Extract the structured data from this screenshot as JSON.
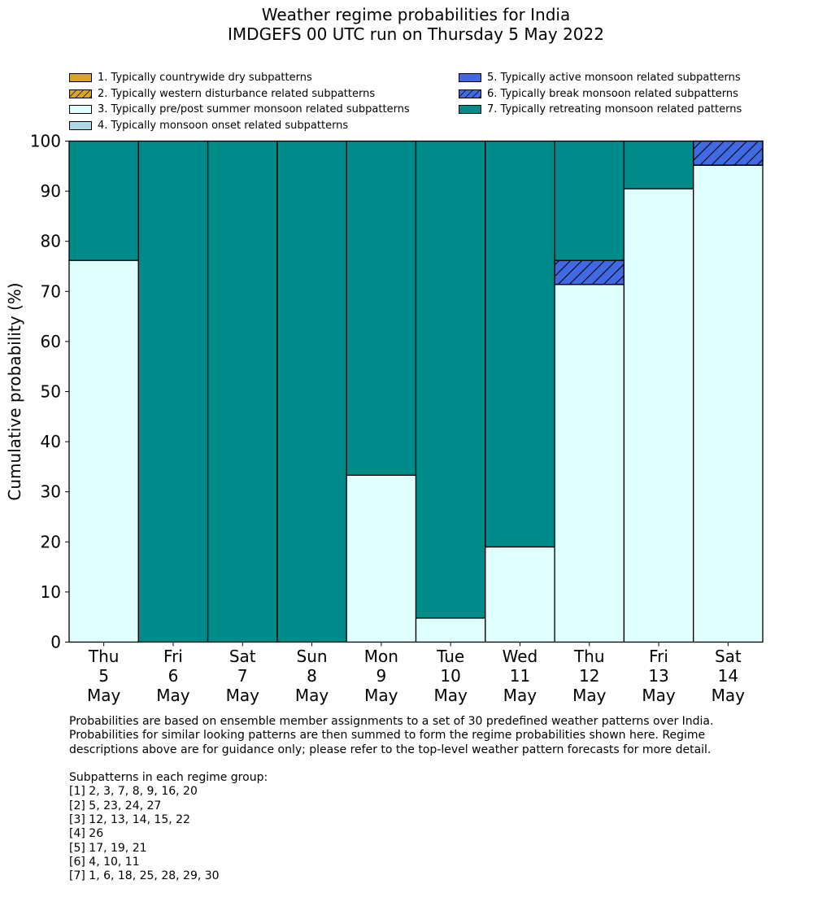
{
  "title_lines": [
    "Weather regime probabilities for India",
    "IMDGEFS 00 UTC run on Thursday 5 May 2022"
  ],
  "legend": [
    {
      "label": "1. Typically countrywide dry subpatterns",
      "color": "#DAA520",
      "hatch": false
    },
    {
      "label": "2. Typically western disturbance related subpatterns",
      "color": "#DAA520",
      "hatch": true
    },
    {
      "label": "3. Typically pre/post summer monsoon related subpatterns",
      "color": "#E0FFFF",
      "hatch": false
    },
    {
      "label": "4. Typically monsoon onset related subpatterns",
      "color": "#ADD8E6",
      "hatch": false
    },
    {
      "label": "5. Typically active monsoon related subpatterns",
      "color": "#4169E1",
      "hatch": false
    },
    {
      "label": "6. Typically break monsoon related subpatterns",
      "color": "#4169E1",
      "hatch": true
    },
    {
      "label": "7. Typically retreating monsoon related patterns",
      "color": "#008B8B",
      "hatch": false
    }
  ],
  "chart_data": {
    "type": "bar",
    "stacked": true,
    "ylabel": "Cumulative probability (%)",
    "ylim": [
      0,
      100
    ],
    "yticks": [
      0,
      10,
      20,
      30,
      40,
      50,
      60,
      70,
      80,
      90,
      100
    ],
    "categories": [
      [
        "Thu",
        "5",
        "May"
      ],
      [
        "Fri",
        "6",
        "May"
      ],
      [
        "Sat",
        "7",
        "May"
      ],
      [
        "Sun",
        "8",
        "May"
      ],
      [
        "Mon",
        "9",
        "May"
      ],
      [
        "Tue",
        "10",
        "May"
      ],
      [
        "Wed",
        "11",
        "May"
      ],
      [
        "Thu",
        "12",
        "May"
      ],
      [
        "Fri",
        "13",
        "May"
      ],
      [
        "Sat",
        "14",
        "May"
      ]
    ],
    "series": [
      {
        "values": [
          0,
          0,
          0,
          0,
          0,
          0,
          0,
          0,
          0,
          0
        ]
      },
      {
        "values": [
          0,
          0,
          0,
          0,
          0,
          0,
          0,
          0,
          0,
          0
        ]
      },
      {
        "values": [
          76.2,
          0,
          0,
          0,
          33.3,
          4.8,
          19.0,
          71.4,
          90.5,
          95.2
        ]
      },
      {
        "values": [
          0,
          0,
          0,
          0,
          0,
          0,
          0,
          0,
          0,
          0
        ]
      },
      {
        "values": [
          0,
          0,
          0,
          0,
          0,
          0,
          0,
          0,
          0,
          0
        ]
      },
      {
        "values": [
          0,
          0,
          0,
          0,
          0,
          0,
          0,
          4.8,
          0,
          4.8
        ]
      },
      {
        "values": [
          23.8,
          100,
          100,
          100,
          66.7,
          95.2,
          81.0,
          23.8,
          9.5,
          0
        ]
      }
    ]
  },
  "notes": [
    "Probabilities are based on ensemble member assignments to a set of 30 predefined weather patterns over India.",
    "Probabilities for similar looking patterns are then summed to form the regime probabilities shown here. Regime",
    "descriptions above are for guidance only; please refer to the top-level weather pattern forecasts for more detail.",
    "",
    "Subpatterns in each regime group:",
    "[1] 2, 3, 7, 8, 9, 16, 20",
    "[2] 5, 23, 24, 27",
    "[3] 12, 13, 14, 15, 22",
    "[4] 26",
    "[5] 17, 19, 21",
    "[6] 4, 10, 11",
    "[7] 1, 6, 18, 25, 28, 29, 30"
  ]
}
